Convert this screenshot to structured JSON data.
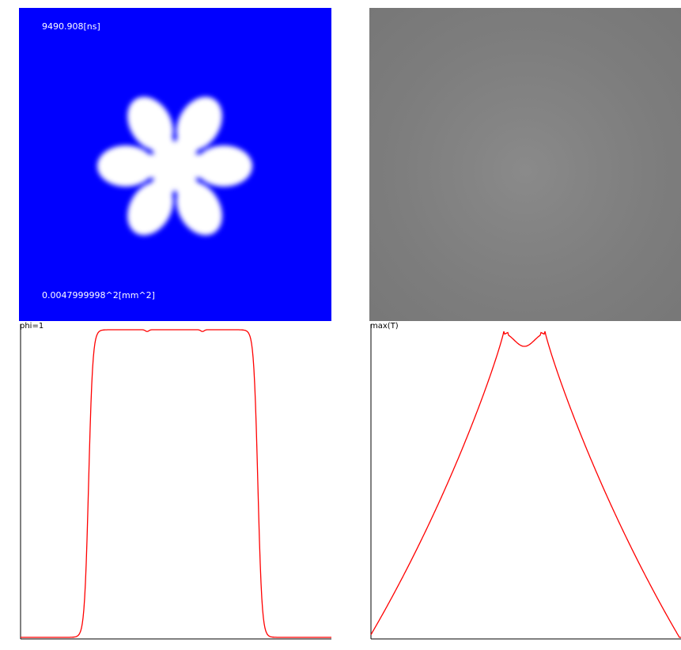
{
  "phase_panel": {
    "time_text": "9490.908[ns]",
    "area_text": "0.0047999998^2[mm^2]",
    "background_color": "#0000ff",
    "crystal_color": "#ffffff"
  },
  "temperature_panel": {
    "colormap": "grayscale"
  },
  "plots": {
    "phi": {
      "label": "phi=1",
      "line_color": "#ff0000"
    },
    "max_t": {
      "label": "max(T)",
      "line_color": "#ff0000"
    }
  }
}
